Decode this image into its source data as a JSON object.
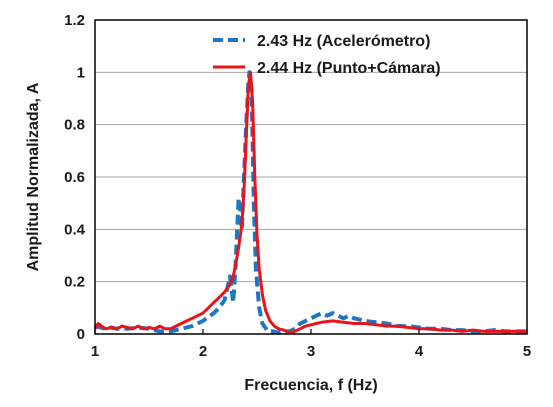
{
  "chart_data": {
    "type": "line",
    "xlabel": "Frecuencia, f (Hz)",
    "ylabel": "Amplitud Normalizada, A",
    "xlim": [
      1,
      5
    ],
    "ylim": [
      0,
      1.2
    ],
    "xticks": [
      1,
      2,
      3,
      4,
      5
    ],
    "yticks": [
      0,
      0.2,
      0.4,
      0.6,
      0.8,
      1,
      1.2
    ],
    "grid": "horizontal",
    "legend_position": "top-right",
    "series": [
      {
        "name": "2.43 Hz (Acelerómetro)",
        "color": "#1f77c4",
        "style": "dashed",
        "x": [
          1.0,
          1.05,
          1.1,
          1.15,
          1.2,
          1.3,
          1.4,
          1.5,
          1.6,
          1.7,
          1.8,
          1.9,
          2.0,
          2.1,
          2.15,
          2.2,
          2.25,
          2.28,
          2.3,
          2.33,
          2.36,
          2.38,
          2.4,
          2.42,
          2.43,
          2.45,
          2.47,
          2.49,
          2.52,
          2.55,
          2.6,
          2.65,
          2.7,
          2.75,
          2.8,
          2.85,
          2.9,
          2.95,
          3.0,
          3.05,
          3.1,
          3.15,
          3.2,
          3.25,
          3.3,
          3.35,
          3.4,
          3.5,
          3.6,
          3.7,
          3.8,
          3.9,
          4.0,
          4.1,
          4.2,
          4.3,
          4.4,
          4.5,
          4.6,
          4.7,
          4.8,
          4.9,
          5.0
        ],
        "y": [
          0.03,
          0.025,
          0.02,
          0.025,
          0.02,
          0.02,
          0.025,
          0.02,
          0.01,
          0.01,
          0.02,
          0.03,
          0.05,
          0.08,
          0.1,
          0.13,
          0.22,
          0.12,
          0.25,
          0.52,
          0.4,
          0.6,
          0.8,
          0.96,
          1.0,
          0.93,
          0.5,
          0.25,
          0.1,
          0.04,
          0.01,
          0.01,
          0.005,
          0.01,
          0.01,
          0.02,
          0.04,
          0.05,
          0.06,
          0.07,
          0.08,
          0.07,
          0.08,
          0.07,
          0.06,
          0.07,
          0.06,
          0.05,
          0.045,
          0.04,
          0.03,
          0.03,
          0.025,
          0.02,
          0.02,
          0.015,
          0.015,
          0.01,
          0.01,
          0.015,
          0.01,
          0.01,
          0.01
        ]
      },
      {
        "name": "2.44 Hz (Punto+Cámara)",
        "color": "#e8131b",
        "style": "solid",
        "x": [
          1.0,
          1.03,
          1.06,
          1.1,
          1.15,
          1.2,
          1.25,
          1.3,
          1.35,
          1.4,
          1.45,
          1.5,
          1.55,
          1.6,
          1.65,
          1.7,
          1.75,
          1.8,
          1.85,
          1.9,
          1.95,
          2.0,
          2.05,
          2.1,
          2.15,
          2.2,
          2.25,
          2.28,
          2.3,
          2.33,
          2.36,
          2.38,
          2.4,
          2.42,
          2.44,
          2.46,
          2.48,
          2.5,
          2.52,
          2.55,
          2.58,
          2.62,
          2.66,
          2.7,
          2.75,
          2.8,
          2.85,
          2.9,
          2.95,
          3.0,
          3.05,
          3.1,
          3.2,
          3.3,
          3.4,
          3.5,
          3.6,
          3.7,
          3.8,
          3.9,
          4.0,
          4.1,
          4.2,
          4.3,
          4.4,
          4.5,
          4.6,
          4.7,
          4.8,
          4.9,
          5.0
        ],
        "y": [
          0.02,
          0.04,
          0.03,
          0.02,
          0.025,
          0.02,
          0.03,
          0.025,
          0.02,
          0.03,
          0.02,
          0.025,
          0.02,
          0.03,
          0.02,
          0.02,
          0.03,
          0.04,
          0.05,
          0.06,
          0.07,
          0.08,
          0.1,
          0.12,
          0.14,
          0.16,
          0.19,
          0.22,
          0.26,
          0.33,
          0.42,
          0.55,
          0.75,
          0.95,
          1.0,
          0.88,
          0.6,
          0.38,
          0.25,
          0.15,
          0.09,
          0.05,
          0.03,
          0.02,
          0.015,
          0.005,
          0.01,
          0.02,
          0.03,
          0.035,
          0.04,
          0.045,
          0.05,
          0.045,
          0.04,
          0.04,
          0.035,
          0.03,
          0.03,
          0.025,
          0.02,
          0.02,
          0.015,
          0.015,
          0.01,
          0.015,
          0.01,
          0.01,
          0.01,
          0.01,
          0.01
        ]
      }
    ]
  }
}
